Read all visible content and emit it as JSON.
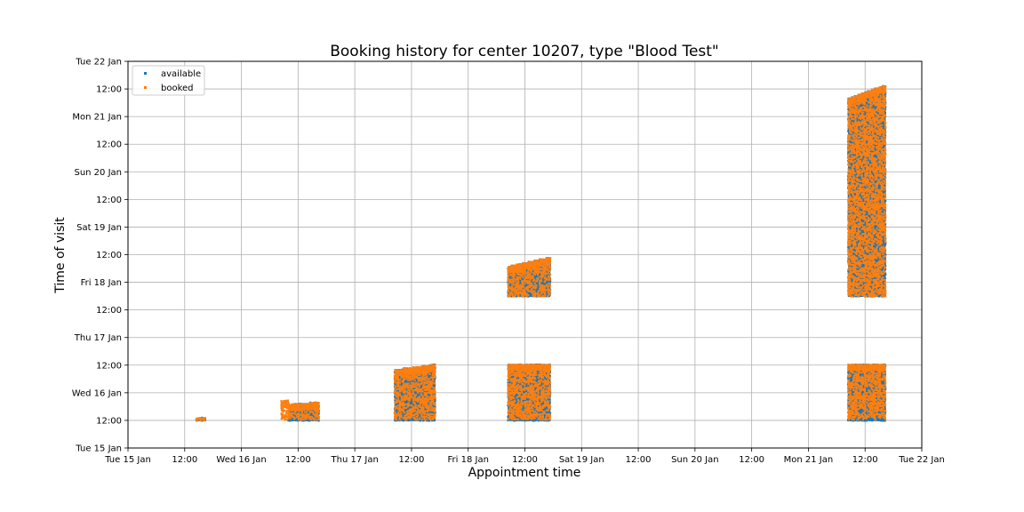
{
  "chart_data": {
    "type": "scatter",
    "title": "Booking history for center 10207,  type \"Blood Test\"",
    "xlabel": "Appointment time",
    "ylabel": "Time of visit",
    "x_unit": "hours since Tue 15 Jan 00:00",
    "y_unit": "hours since Tue 15 Jan 00:00",
    "xlim": [
      0,
      168
    ],
    "ylim": [
      0,
      168
    ],
    "x_ticks": [
      {
        "value": 0,
        "label": "Tue 15 Jan"
      },
      {
        "value": 12,
        "label": "12:00"
      },
      {
        "value": 24,
        "label": "Wed 16 Jan"
      },
      {
        "value": 36,
        "label": "12:00"
      },
      {
        "value": 48,
        "label": "Thu 17 Jan"
      },
      {
        "value": 60,
        "label": "12:00"
      },
      {
        "value": 72,
        "label": "Fri 18 Jan"
      },
      {
        "value": 84,
        "label": "12:00"
      },
      {
        "value": 96,
        "label": "Sat 19 Jan"
      },
      {
        "value": 108,
        "label": "12:00"
      },
      {
        "value": 120,
        "label": "Sun 20 Jan"
      },
      {
        "value": 132,
        "label": "12:00"
      },
      {
        "value": 144,
        "label": "Mon 21 Jan"
      },
      {
        "value": 156,
        "label": "12:00"
      },
      {
        "value": 168,
        "label": "Tue 22 Jan"
      }
    ],
    "y_ticks": [
      {
        "value": 0,
        "label": "Tue 15 Jan"
      },
      {
        "value": 12,
        "label": "12:00"
      },
      {
        "value": 24,
        "label": "Wed 16 Jan"
      },
      {
        "value": 36,
        "label": "12:00"
      },
      {
        "value": 48,
        "label": "Thu 17 Jan"
      },
      {
        "value": 60,
        "label": "12:00"
      },
      {
        "value": 72,
        "label": "Fri 18 Jan"
      },
      {
        "value": 84,
        "label": "12:00"
      },
      {
        "value": 96,
        "label": "Sat 19 Jan"
      },
      {
        "value": 108,
        "label": "12:00"
      },
      {
        "value": 120,
        "label": "Sun 20 Jan"
      },
      {
        "value": 132,
        "label": "12:00"
      },
      {
        "value": 144,
        "label": "Mon 21 Jan"
      },
      {
        "value": 156,
        "label": "12:00"
      },
      {
        "value": 168,
        "label": "Tue 22 Jan"
      }
    ],
    "grid": true,
    "legend_position": "top-left",
    "series": [
      {
        "name": "available",
        "color": "#1f77b4",
        "clusters": [
          {
            "x": [
              14.5,
              16.5
            ],
            "y_bottom": [
              12.0,
              12.0
            ],
            "y_top": [
              13.0,
              13.3
            ]
          },
          {
            "x": [
              34.0,
              40.5
            ],
            "y_bottom": [
              12.0,
              12.0
            ],
            "y_top": [
              19.0,
              20.0
            ]
          },
          {
            "x": [
              56.5,
              65.0
            ],
            "y_bottom": [
              12.0,
              12.0
            ],
            "y_top": [
              34.0,
              36.5
            ]
          },
          {
            "x": [
              80.5,
              89.5
            ],
            "y_bottom": [
              12.0,
              12.0
            ],
            "y_top": [
              36.5,
              36.5
            ]
          },
          {
            "x": [
              80.5,
              89.5
            ],
            "y_bottom": [
              66.0,
              66.0
            ],
            "y_top": [
              79.0,
              83.0
            ]
          },
          {
            "x": [
              152.5,
              160.5
            ],
            "y_bottom": [
              12.0,
              12.0
            ],
            "y_top": [
              36.5,
              36.5
            ]
          },
          {
            "x": [
              152.5,
              160.5
            ],
            "y_bottom": [
              66.0,
              66.0
            ],
            "y_top": [
              152.0,
              158.0
            ]
          }
        ]
      },
      {
        "name": "booked",
        "color": "#ff7f0e",
        "clusters": [
          {
            "x": [
              14.5,
              16.5
            ],
            "y_bottom": [
              12.3,
              12.3
            ],
            "y_top": [
              13.0,
              13.3
            ]
          },
          {
            "x": [
              32.5,
              34.0
            ],
            "y_bottom": [
              12.3,
              12.3
            ],
            "y_top": [
              21.0,
              21.0
            ]
          },
          {
            "x": [
              34.0,
              40.5
            ],
            "y_bottom": [
              12.5,
              12.5
            ],
            "y_top": [
              19.0,
              20.0
            ]
          },
          {
            "x": [
              56.5,
              65.0
            ],
            "y_bottom": [
              12.5,
              12.5
            ],
            "y_top": [
              34.0,
              36.5
            ]
          },
          {
            "x": [
              80.5,
              89.5
            ],
            "y_bottom": [
              12.5,
              12.5
            ],
            "y_top": [
              36.5,
              36.5
            ]
          },
          {
            "x": [
              80.5,
              89.5
            ],
            "y_bottom": [
              66.0,
              66.0
            ],
            "y_top": [
              79.0,
              83.0
            ]
          },
          {
            "x": [
              152.5,
              160.5
            ],
            "y_bottom": [
              12.5,
              12.5
            ],
            "y_top": [
              36.5,
              36.5
            ]
          },
          {
            "x": [
              152.5,
              160.5
            ],
            "y_bottom": [
              66.0,
              66.0
            ],
            "y_top": [
              152.0,
              158.0
            ]
          }
        ]
      }
    ]
  }
}
